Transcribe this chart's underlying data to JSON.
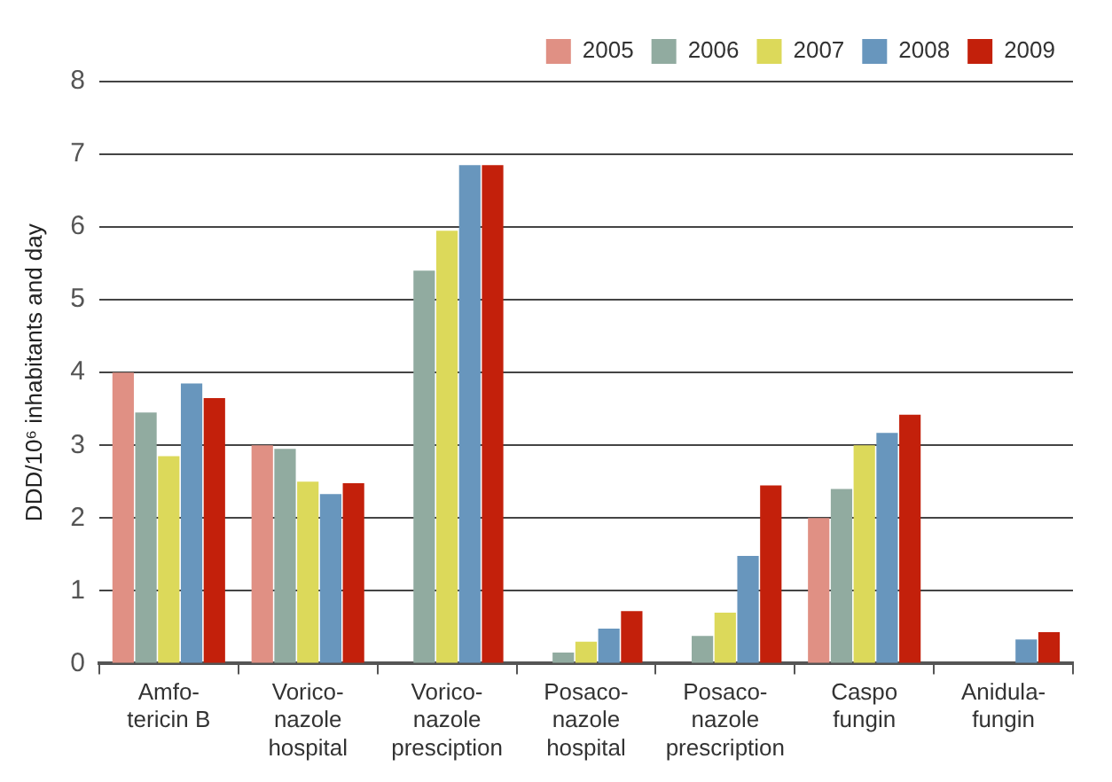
{
  "chart_data": {
    "type": "bar",
    "ylabel": "DDD/10⁶ inhabitants and day",
    "categories": [
      "Amfo-\ntericin B",
      "Vorico-\nnazole\nhospital",
      "Vorico-\nnazole\npresciption",
      "Posaco-\nnazole\nhospital",
      "Posaco-\nnazole\nprescription",
      "Caspo\nfungin",
      "Anidula-\nfungin"
    ],
    "series": [
      {
        "name": "2005",
        "color": "#e09084",
        "values": [
          4.0,
          3.0,
          0,
          0,
          0,
          2.0,
          0
        ]
      },
      {
        "name": "2006",
        "color": "#91aba0",
        "values": [
          3.45,
          2.95,
          5.4,
          0.15,
          0.38,
          2.4,
          0
        ]
      },
      {
        "name": "2007",
        "color": "#dcd95a",
        "values": [
          2.85,
          2.5,
          5.95,
          0.3,
          0.7,
          3.0,
          0
        ]
      },
      {
        "name": "2008",
        "color": "#6896bd",
        "values": [
          3.85,
          2.33,
          6.85,
          0.48,
          1.48,
          3.17,
          0.33
        ]
      },
      {
        "name": "2009",
        "color": "#c3200b",
        "values": [
          3.65,
          2.48,
          6.85,
          0.72,
          2.45,
          3.42,
          0.43
        ]
      }
    ],
    "ylim": [
      0,
      8
    ],
    "yticks": [
      0,
      1,
      2,
      3,
      4,
      5,
      6,
      7,
      8
    ],
    "grid": "y",
    "legend": "top right"
  }
}
